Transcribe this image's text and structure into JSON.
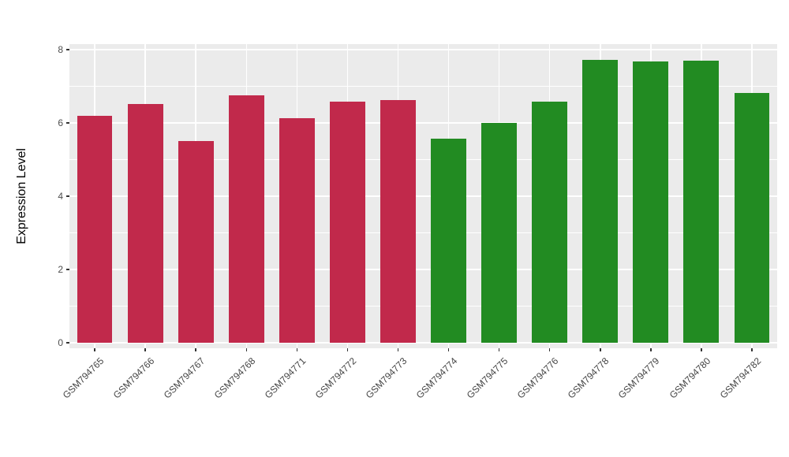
{
  "chart_data": {
    "type": "bar",
    "title": "",
    "xlabel": "",
    "ylabel": "Expression Level",
    "categories": [
      "GSM794765",
      "GSM794766",
      "GSM794767",
      "GSM794768",
      "GSM794771",
      "GSM794772",
      "GSM794773",
      "GSM794774",
      "GSM794775",
      "GSM794776",
      "GSM794778",
      "GSM794779",
      "GSM794780",
      "GSM794782"
    ],
    "values": [
      6.2,
      6.52,
      5.5,
      6.75,
      6.12,
      6.58,
      6.62,
      5.58,
      6.01,
      6.58,
      7.72,
      7.67,
      7.7,
      6.82
    ],
    "bar_colors": [
      "#C1294B",
      "#C1294B",
      "#C1294B",
      "#C1294B",
      "#C1294B",
      "#C1294B",
      "#C1294B",
      "#228B22",
      "#228B22",
      "#228B22",
      "#228B22",
      "#228B22",
      "#228B22",
      "#228B22"
    ],
    "ylim": [
      0,
      8
    ],
    "yticks": [
      0,
      2,
      4,
      6,
      8
    ],
    "minor_ticks": [
      1,
      3,
      5,
      7
    ],
    "grid": true,
    "legend": "none",
    "panel_background": "#EBEBEB",
    "gridline_color": "#FFFFFF",
    "bar_width_fraction": 0.7
  }
}
